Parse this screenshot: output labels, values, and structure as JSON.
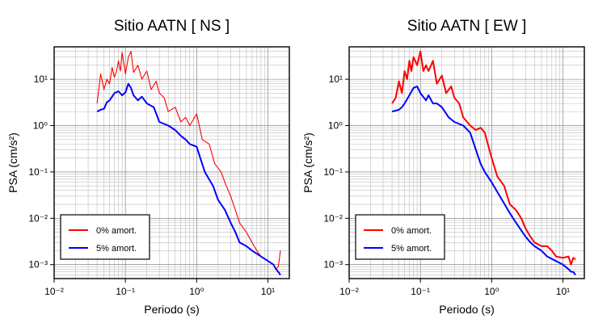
{
  "chart_data": [
    {
      "type": "line",
      "title": "Sitio AATN [ NS ]",
      "xlabel": "Periodo (s)",
      "ylabel": "PSA (cm/s²)",
      "x_scale": "log",
      "y_scale": "log",
      "xlim": [
        0.01,
        20
      ],
      "ylim": [
        0.0005,
        50
      ],
      "x_tick_labels": [
        "10⁻²",
        "10⁻¹",
        "10⁰",
        "10¹"
      ],
      "y_tick_labels": [
        "10⁻³",
        "10⁻²",
        "10⁻¹",
        "10⁰",
        "10¹"
      ],
      "grid": true,
      "legend_position": "bottom-left",
      "series": [
        {
          "name": "0% amort.",
          "color": "#ff0000",
          "x": [
            0.04,
            0.045,
            0.05,
            0.055,
            0.06,
            0.065,
            0.07,
            0.075,
            0.08,
            0.085,
            0.09,
            0.1,
            0.11,
            0.12,
            0.13,
            0.15,
            0.17,
            0.2,
            0.23,
            0.27,
            0.3,
            0.35,
            0.4,
            0.5,
            0.6,
            0.7,
            0.8,
            1.0,
            1.2,
            1.5,
            1.8,
            2.2,
            2.6,
            3.0,
            3.5,
            4.0,
            5.0,
            6.0,
            7.0,
            8.0,
            10.0,
            12.0,
            13.0,
            14.0,
            15.0
          ],
          "y": [
            3.0,
            13.0,
            6.0,
            10.0,
            8.0,
            18.0,
            11.0,
            15.0,
            25.0,
            15.0,
            38.0,
            13.0,
            30.0,
            40.0,
            14.0,
            20.0,
            10.0,
            15.0,
            6.0,
            9.0,
            5.0,
            4.0,
            2.0,
            2.5,
            1.2,
            1.5,
            1.0,
            1.8,
            0.5,
            0.4,
            0.15,
            0.1,
            0.05,
            0.03,
            0.015,
            0.008,
            0.005,
            0.003,
            0.002,
            0.0015,
            0.0012,
            0.001,
            0.0008,
            0.0009,
            0.002
          ]
        },
        {
          "name": "5% amort.",
          "color": "#0000ff",
          "x": [
            0.04,
            0.045,
            0.05,
            0.055,
            0.06,
            0.07,
            0.08,
            0.09,
            0.1,
            0.11,
            0.12,
            0.13,
            0.15,
            0.17,
            0.2,
            0.25,
            0.3,
            0.4,
            0.5,
            0.6,
            0.7,
            0.8,
            1.0,
            1.3,
            1.7,
            2.0,
            2.5,
            3.0,
            3.5,
            4.0,
            5.0,
            6.0,
            8.0,
            10.0,
            12.0,
            13.0,
            14.0,
            15.0
          ],
          "y": [
            2.0,
            2.2,
            2.3,
            3.2,
            3.5,
            5.0,
            5.5,
            4.5,
            5.2,
            8.0,
            6.5,
            4.5,
            3.5,
            4.2,
            3.0,
            2.5,
            1.2,
            1.0,
            0.8,
            0.6,
            0.5,
            0.4,
            0.35,
            0.1,
            0.05,
            0.025,
            0.015,
            0.008,
            0.005,
            0.003,
            0.0025,
            0.002,
            0.0015,
            0.0012,
            0.001,
            0.0008,
            0.0007,
            0.0006
          ]
        }
      ]
    },
    {
      "type": "line",
      "title": "Sitio AATN [ EW ]",
      "xlabel": "Periodo (s)",
      "ylabel": "PSA (cm/s²)",
      "x_scale": "log",
      "y_scale": "log",
      "xlim": [
        0.01,
        20
      ],
      "ylim": [
        0.0005,
        50
      ],
      "x_tick_labels": [
        "10⁻²",
        "10⁻¹",
        "10⁰",
        "10¹"
      ],
      "y_tick_labels": [
        "10⁻³",
        "10⁻²",
        "10⁻¹",
        "10⁰",
        "10¹"
      ],
      "grid": true,
      "legend_position": "bottom-left",
      "series": [
        {
          "name": "0% amort.",
          "color": "#ff0000",
          "x": [
            0.04,
            0.045,
            0.05,
            0.055,
            0.06,
            0.065,
            0.07,
            0.075,
            0.08,
            0.09,
            0.1,
            0.11,
            0.12,
            0.13,
            0.15,
            0.17,
            0.2,
            0.23,
            0.27,
            0.3,
            0.35,
            0.4,
            0.5,
            0.6,
            0.7,
            0.8,
            1.0,
            1.2,
            1.5,
            1.8,
            2.2,
            2.6,
            3.0,
            3.5,
            4.0,
            5.0,
            6.0,
            7.0,
            8.0,
            10.0,
            12.0,
            13.0,
            14.0,
            15.0
          ],
          "y": [
            3.0,
            4.0,
            9.0,
            5.0,
            15.0,
            10.0,
            25.0,
            15.0,
            30.0,
            20.0,
            40.0,
            15.0,
            20.0,
            15.0,
            25.0,
            8.0,
            12.0,
            5.0,
            7.0,
            4.0,
            3.0,
            1.5,
            1.0,
            0.8,
            0.9,
            0.7,
            0.2,
            0.08,
            0.05,
            0.02,
            0.015,
            0.01,
            0.006,
            0.004,
            0.003,
            0.0025,
            0.0025,
            0.002,
            0.0015,
            0.0014,
            0.0015,
            0.001,
            0.0014,
            0.0013
          ]
        },
        {
          "name": "5% amort.",
          "color": "#0000ff",
          "x": [
            0.04,
            0.045,
            0.05,
            0.055,
            0.06,
            0.07,
            0.08,
            0.09,
            0.1,
            0.12,
            0.13,
            0.15,
            0.17,
            0.2,
            0.25,
            0.3,
            0.4,
            0.5,
            0.6,
            0.7,
            0.8,
            1.0,
            1.3,
            1.7,
            2.0,
            2.5,
            3.0,
            3.5,
            4.0,
            5.0,
            6.0,
            8.0,
            10.0,
            12.0,
            13.0,
            14.0,
            15.0
          ],
          "y": [
            2.0,
            2.1,
            2.2,
            2.5,
            3.0,
            4.5,
            6.5,
            7.0,
            5.0,
            3.5,
            4.5,
            3.0,
            3.0,
            2.5,
            1.5,
            1.2,
            1.0,
            0.7,
            0.3,
            0.15,
            0.1,
            0.06,
            0.03,
            0.015,
            0.01,
            0.006,
            0.004,
            0.003,
            0.0025,
            0.002,
            0.0015,
            0.0012,
            0.001,
            0.0008,
            0.0007,
            0.0007,
            0.0006
          ]
        }
      ]
    }
  ]
}
